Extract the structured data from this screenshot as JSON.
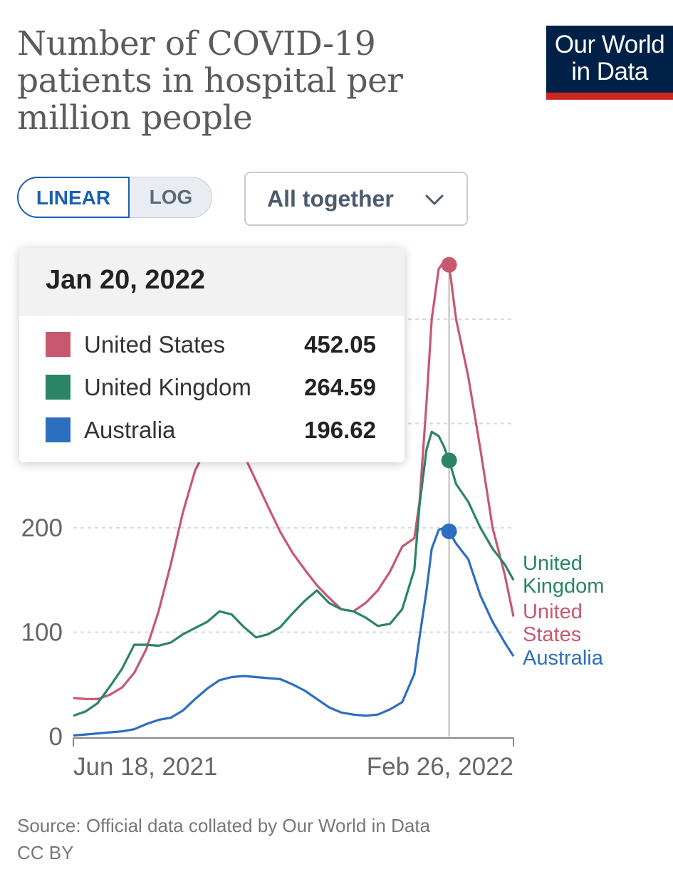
{
  "header": {
    "title_lines": [
      "Number of COVID-19",
      "patients in hospital per",
      "million people"
    ],
    "logo_lines": [
      "Our World",
      "in Data"
    ]
  },
  "controls": {
    "scale_options": [
      "LINEAR",
      "LOG"
    ],
    "scale_selected": "LINEAR",
    "dropdown_value": "All together"
  },
  "tooltip": {
    "date": "Jan 20, 2022",
    "rows": [
      {
        "name": "United States",
        "value": "452.05",
        "color": "#c8586e"
      },
      {
        "name": "United Kingdom",
        "value": "264.59",
        "color": "#2b8465"
      },
      {
        "name": "Australia",
        "value": "196.62",
        "color": "#2c6ebf"
      }
    ]
  },
  "chart_data": {
    "type": "line",
    "title": "Number of COVID-19 patients in hospital per million people",
    "x_tick_labels": [
      "Jun 18, 2021",
      "Feb 26, 2022"
    ],
    "xlim": [
      "2021-06-18",
      "2022-02-26"
    ],
    "ylim": [
      0,
      470
    ],
    "y_ticks": [
      0,
      100,
      200,
      300,
      400
    ],
    "y_tick_labels_visible": [
      "0",
      "100",
      "200"
    ],
    "grid": true,
    "hover_date": "2022-01-20",
    "series": [
      {
        "name": "United States",
        "end_label": [
          "United",
          "States"
        ],
        "color": "#c8586e",
        "points": [
          [
            "2021-06-18",
            37
          ],
          [
            "2021-06-25",
            36
          ],
          [
            "2021-07-02",
            36
          ],
          [
            "2021-07-09",
            40
          ],
          [
            "2021-07-16",
            47
          ],
          [
            "2021-07-23",
            61
          ],
          [
            "2021-07-30",
            84
          ],
          [
            "2021-08-06",
            120
          ],
          [
            "2021-08-13",
            165
          ],
          [
            "2021-08-20",
            215
          ],
          [
            "2021-08-27",
            255
          ],
          [
            "2021-09-03",
            278
          ],
          [
            "2021-09-10",
            290
          ],
          [
            "2021-09-17",
            288
          ],
          [
            "2021-09-24",
            270
          ],
          [
            "2021-10-01",
            245
          ],
          [
            "2021-10-08",
            220
          ],
          [
            "2021-10-15",
            196
          ],
          [
            "2021-10-22",
            176
          ],
          [
            "2021-10-29",
            160
          ],
          [
            "2021-11-05",
            145
          ],
          [
            "2021-11-12",
            133
          ],
          [
            "2021-11-19",
            122
          ],
          [
            "2021-11-26",
            120
          ],
          [
            "2021-12-03",
            128
          ],
          [
            "2021-12-10",
            140
          ],
          [
            "2021-12-17",
            158
          ],
          [
            "2021-12-24",
            182
          ],
          [
            "2021-12-31",
            190
          ],
          [
            "2022-01-03",
            225
          ],
          [
            "2022-01-07",
            320
          ],
          [
            "2022-01-10",
            400
          ],
          [
            "2022-01-14",
            448
          ],
          [
            "2022-01-17",
            455
          ],
          [
            "2022-01-20",
            452.05
          ],
          [
            "2022-01-24",
            400
          ],
          [
            "2022-01-31",
            345
          ],
          [
            "2022-02-07",
            275
          ],
          [
            "2022-02-14",
            200
          ],
          [
            "2022-02-21",
            155
          ],
          [
            "2022-02-26",
            115
          ]
        ]
      },
      {
        "name": "United Kingdom",
        "end_label": [
          "United",
          "Kingdom"
        ],
        "color": "#2b8465",
        "points": [
          [
            "2021-06-18",
            20
          ],
          [
            "2021-06-25",
            24
          ],
          [
            "2021-07-02",
            32
          ],
          [
            "2021-07-09",
            48
          ],
          [
            "2021-07-16",
            65
          ],
          [
            "2021-07-23",
            88
          ],
          [
            "2021-07-30",
            88
          ],
          [
            "2021-08-06",
            87
          ],
          [
            "2021-08-13",
            90
          ],
          [
            "2021-08-20",
            98
          ],
          [
            "2021-08-27",
            104
          ],
          [
            "2021-09-03",
            110
          ],
          [
            "2021-09-10",
            120
          ],
          [
            "2021-09-17",
            117
          ],
          [
            "2021-09-24",
            105
          ],
          [
            "2021-10-01",
            95
          ],
          [
            "2021-10-08",
            98
          ],
          [
            "2021-10-15",
            105
          ],
          [
            "2021-10-22",
            118
          ],
          [
            "2021-10-29",
            130
          ],
          [
            "2021-11-05",
            140
          ],
          [
            "2021-11-12",
            128
          ],
          [
            "2021-11-19",
            122
          ],
          [
            "2021-11-26",
            120
          ],
          [
            "2021-12-03",
            114
          ],
          [
            "2021-12-10",
            106
          ],
          [
            "2021-12-17",
            108
          ],
          [
            "2021-12-24",
            122
          ],
          [
            "2021-12-31",
            160
          ],
          [
            "2022-01-03",
            222
          ],
          [
            "2022-01-07",
            275
          ],
          [
            "2022-01-10",
            292
          ],
          [
            "2022-01-14",
            288
          ],
          [
            "2022-01-17",
            278
          ],
          [
            "2022-01-20",
            264.59
          ],
          [
            "2022-01-24",
            242
          ],
          [
            "2022-01-31",
            225
          ],
          [
            "2022-02-07",
            200
          ],
          [
            "2022-02-14",
            180
          ],
          [
            "2022-02-21",
            165
          ],
          [
            "2022-02-26",
            150
          ]
        ]
      },
      {
        "name": "Australia",
        "end_label": [
          "Australia"
        ],
        "color": "#2c6ebf",
        "points": [
          [
            "2021-06-18",
            1
          ],
          [
            "2021-06-25",
            2
          ],
          [
            "2021-07-02",
            3
          ],
          [
            "2021-07-09",
            4
          ],
          [
            "2021-07-16",
            5
          ],
          [
            "2021-07-23",
            7
          ],
          [
            "2021-07-30",
            12
          ],
          [
            "2021-08-06",
            16
          ],
          [
            "2021-08-13",
            18
          ],
          [
            "2021-08-20",
            25
          ],
          [
            "2021-08-27",
            36
          ],
          [
            "2021-09-03",
            46
          ],
          [
            "2021-09-10",
            54
          ],
          [
            "2021-09-17",
            57
          ],
          [
            "2021-09-24",
            58
          ],
          [
            "2021-10-01",
            57
          ],
          [
            "2021-10-08",
            56
          ],
          [
            "2021-10-15",
            55
          ],
          [
            "2021-10-22",
            50
          ],
          [
            "2021-10-29",
            44
          ],
          [
            "2021-11-05",
            36
          ],
          [
            "2021-11-12",
            28
          ],
          [
            "2021-11-19",
            23
          ],
          [
            "2021-11-26",
            21
          ],
          [
            "2021-12-03",
            20
          ],
          [
            "2021-12-10",
            21
          ],
          [
            "2021-12-17",
            26
          ],
          [
            "2021-12-24",
            33
          ],
          [
            "2021-12-31",
            60
          ],
          [
            "2022-01-03",
            95
          ],
          [
            "2022-01-07",
            140
          ],
          [
            "2022-01-10",
            180
          ],
          [
            "2022-01-14",
            198
          ],
          [
            "2022-01-17",
            200
          ],
          [
            "2022-01-20",
            196.62
          ],
          [
            "2022-01-24",
            185
          ],
          [
            "2022-01-31",
            170
          ],
          [
            "2022-02-07",
            135
          ],
          [
            "2022-02-14",
            110
          ],
          [
            "2022-02-21",
            90
          ],
          [
            "2022-02-26",
            77
          ]
        ]
      }
    ]
  },
  "footer": {
    "source": "Source: Official data collated by Our World in Data",
    "license": "CC BY"
  }
}
